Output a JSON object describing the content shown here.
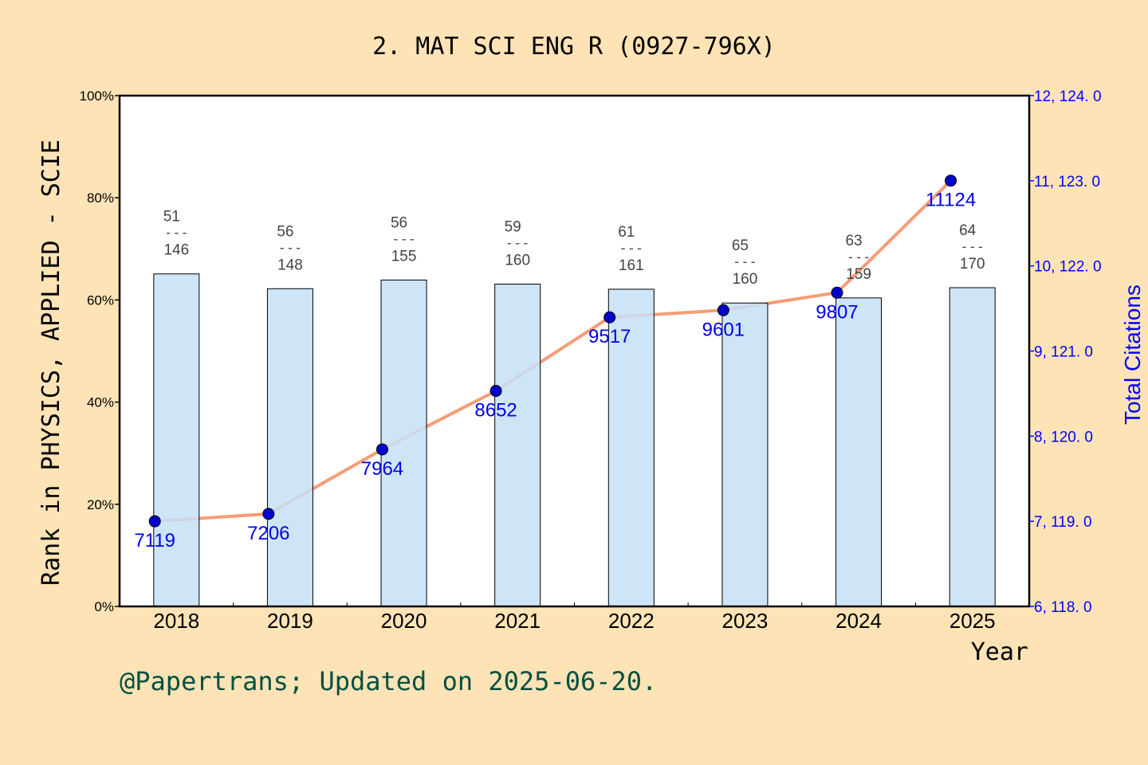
{
  "chart_data": {
    "type": "bar+line",
    "title": "2. MAT SCI ENG R (0927-796X)",
    "xlabel": "Year",
    "ylabel_left": "Rank in PHYSICS, APPLIED - SCIE",
    "ylabel_right": "Total Citations",
    "categories": [
      "2018",
      "2019",
      "2020",
      "2021",
      "2022",
      "2023",
      "2024",
      "2025"
    ],
    "rank": [
      51,
      56,
      56,
      59,
      61,
      65,
      63,
      64
    ],
    "total": [
      146,
      148,
      155,
      160,
      161,
      160,
      159,
      170
    ],
    "bar_values_percent": [
      65.1,
      62.2,
      63.9,
      63.1,
      62.1,
      59.4,
      60.4,
      62.4
    ],
    "citations": [
      7119,
      7206,
      7964,
      8652,
      9517,
      9601,
      9807,
      11124
    ],
    "ylim_left": [
      0,
      100
    ],
    "yticks_left": [
      "0%",
      "20%",
      "40%",
      "60%",
      "80%",
      "100%"
    ],
    "ylim_right": [
      6118,
      12124
    ],
    "yticks_right": [
      "6, 118. 0",
      "7, 119. 0",
      "8, 120. 0",
      "9, 121. 0",
      "10, 122. 0",
      "11, 123. 0",
      "12, 124. 0"
    ],
    "grid": false,
    "colors": {
      "background": "#fee3b6",
      "bar": "#c5e0f7",
      "line": "#f79c77",
      "point": "#0000cc",
      "citation_label": "#0000ee",
      "right_axis": "#0000ff",
      "footer": "#005040"
    }
  },
  "footer": "@Papertrans; Updated on 2025-06-20."
}
